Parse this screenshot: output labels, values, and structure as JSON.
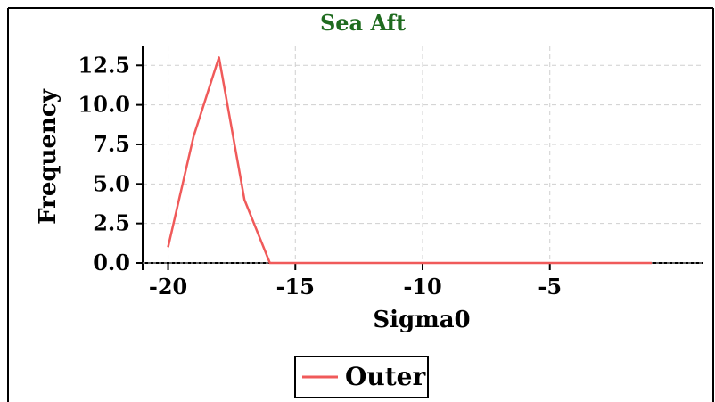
{
  "chart_data": {
    "type": "line",
    "title": "Sea Aft",
    "xlabel": "Sigma0",
    "ylabel": "Frequency",
    "xlim": [
      -21,
      1
    ],
    "ylim": [
      0,
      13.7
    ],
    "xticks": [
      -20,
      -15,
      -10,
      -5
    ],
    "yticks": [
      0.0,
      2.5,
      5.0,
      7.5,
      10.0,
      12.5
    ],
    "xtick_labels": [
      "-20",
      "-15",
      "-10",
      "-5"
    ],
    "ytick_labels": [
      "0.0",
      "2.5",
      "5.0",
      "7.5",
      "10.0",
      "12.5"
    ],
    "grid": true,
    "legend_position": "bottom-center",
    "series": [
      {
        "name": "Outer",
        "color": "#f05a5a",
        "x": [
          -20,
          -19,
          -18,
          -17,
          -16,
          -15,
          -14,
          -13,
          -12,
          -11,
          -10,
          -9,
          -8,
          -7,
          -6,
          -5,
          -4,
          -3,
          -2,
          -1
        ],
        "y": [
          1,
          8,
          13,
          4,
          0,
          0,
          0,
          0,
          0,
          0,
          0,
          0,
          0,
          0,
          0,
          0,
          0,
          0,
          0,
          0
        ]
      }
    ]
  }
}
